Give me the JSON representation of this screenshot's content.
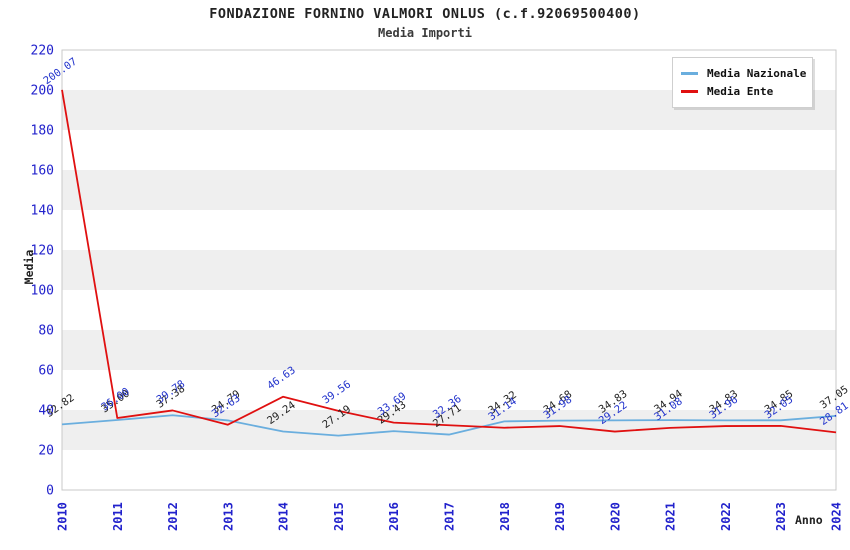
{
  "chart_data": {
    "type": "line",
    "title": "FONDAZIONE FORNINO VALMORI ONLUS (c.f.92069500400)",
    "subtitle": "Media Importi",
    "xlabel": "Anno",
    "ylabel": "Media",
    "categories": [
      "2010",
      "2011",
      "2012",
      "2013",
      "2014",
      "2015",
      "2016",
      "2017",
      "2018",
      "2019",
      "2020",
      "2021",
      "2022",
      "2023",
      "2024"
    ],
    "series": [
      {
        "name": "Media Nazionale",
        "color": "#6aaede",
        "label_color": "#222222",
        "values": [
          32.82,
          35.0,
          37.38,
          34.79,
          29.24,
          27.19,
          29.43,
          27.71,
          34.32,
          34.68,
          34.83,
          34.94,
          34.83,
          34.85,
          37.05
        ]
      },
      {
        "name": "Media Ente",
        "color": "#e01010",
        "label_color": "#2233cc",
        "values": [
          200.07,
          36.0,
          39.78,
          32.63,
          46.63,
          39.56,
          33.69,
          32.36,
          31.14,
          31.98,
          29.22,
          31.08,
          31.96,
          32.05,
          28.81
        ]
      }
    ],
    "ylim": [
      0,
      220
    ],
    "ytick_step": 20,
    "legend_position": "top-right",
    "grid": "horizontal-bands",
    "band_color": "#efefef",
    "axis_tick_color": "#2222cc",
    "plot_border_color": "#c9c9c9"
  }
}
